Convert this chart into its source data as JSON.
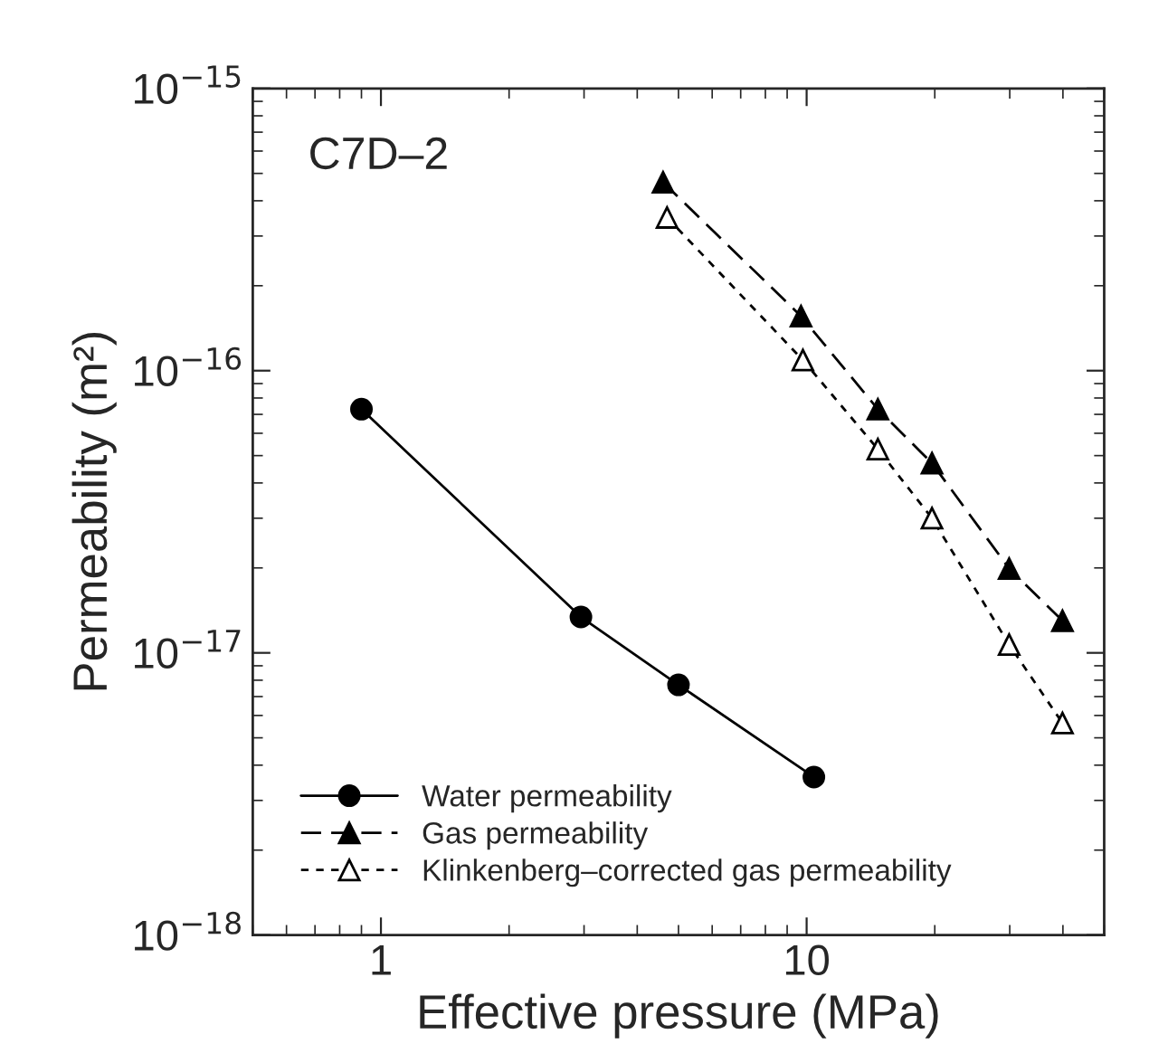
{
  "chart_data": {
    "type": "line",
    "xlabel": "Effective pressure (MPa)",
    "ylabel": "Permeability (m²)",
    "annotations": [
      "C7D–2"
    ],
    "log": "xy",
    "xlim": [
      0.5,
      50
    ],
    "ylim": [
      1e-18,
      1e-15
    ],
    "xticks": [
      1,
      10
    ],
    "yticks": [
      {
        "value": 1e-18,
        "label": "10$^{−18}$"
      },
      {
        "value": 1e-17,
        "label": "10$^{−17}$"
      },
      {
        "value": 1e-16,
        "label": "10$^{−16}$"
      },
      {
        "value": 1e-15,
        "label": "10$^{−15}$"
      }
    ],
    "grid": false,
    "legend": "bottom left",
    "series": [
      {
        "name": "Water permeability",
        "color": "#000000",
        "marker": "circle",
        "line_style": "solid",
        "x": [
          0.9,
          2.95,
          5.0,
          10.4
        ],
        "values": [
          7.3e-17,
          1.34e-17,
          7.7e-18,
          3.63e-18
        ]
      },
      {
        "name": "Gas permeability",
        "color": "#000000",
        "marker": "triangle",
        "line_style": "dashed",
        "x": [
          4.6,
          9.7,
          14.7,
          19.7,
          29.9,
          39.9
        ],
        "values": [
          4.65e-16,
          1.56e-16,
          7.3e-17,
          4.7e-17,
          1.99e-17,
          1.3e-17
        ]
      },
      {
        "name": "Klinkenberg–corrected gas permeability",
        "color": "#ffffff",
        "marker": "triangle",
        "line_style": "dotted",
        "x": [
          4.7,
          9.8,
          14.7,
          19.7,
          29.9,
          39.9
        ],
        "values": [
          3.49e-16,
          1.09e-16,
          5.27e-17,
          3e-17,
          1.07e-17,
          5.64e-18
        ]
      }
    ]
  }
}
